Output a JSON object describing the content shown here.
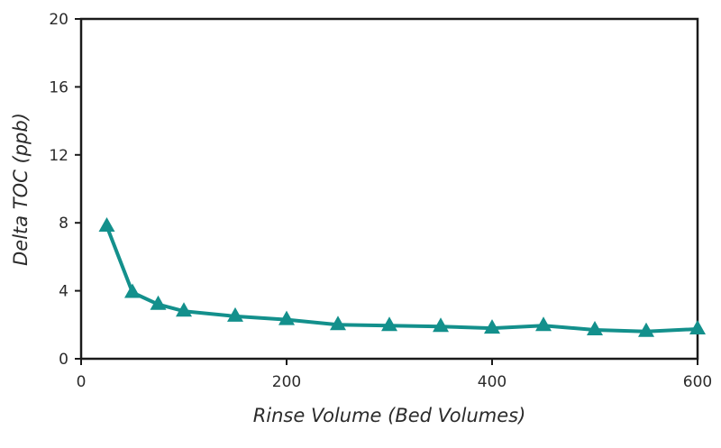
{
  "chart_data": {
    "type": "line",
    "title": "",
    "xlabel": "Rinse Volume (Bed Volumes)",
    "ylabel": "Delta TOC (ppb)",
    "xlim": [
      0,
      600
    ],
    "ylim": [
      0,
      20
    ],
    "xticks": [
      0,
      200,
      400,
      600
    ],
    "xtick_labels": [
      "0",
      "200",
      "400",
      "600"
    ],
    "yticks": [
      0,
      4,
      8,
      12,
      16,
      20
    ],
    "ytick_labels": [
      "0",
      "4",
      "8",
      "12",
      "16",
      "20"
    ],
    "grid": false,
    "legend": "none",
    "series": [
      {
        "name": "Delta TOC",
        "marker": "triangle",
        "color": "#13908c",
        "x": [
          25,
          50,
          75,
          100,
          150,
          200,
          250,
          300,
          350,
          400,
          450,
          500,
          550,
          600
        ],
        "y": [
          7.8,
          3.9,
          3.2,
          2.8,
          2.5,
          2.3,
          2.0,
          1.95,
          1.9,
          1.8,
          1.95,
          1.7,
          1.6,
          1.75
        ]
      }
    ]
  }
}
